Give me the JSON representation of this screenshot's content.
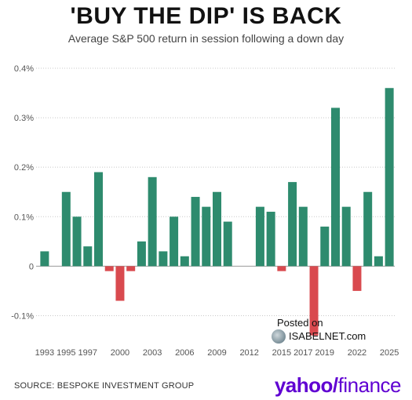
{
  "title": "'BUY THE DIP' IS BACK",
  "subtitle": "Average S&P 500 return in session following a down day",
  "source": "SOURCE: BESPOKE INVESTMENT GROUP",
  "logo": {
    "brand": "yahoo",
    "slash": "/",
    "product": "finance"
  },
  "watermark": {
    "line1": "Posted on",
    "line2": "ISABELNET.com"
  },
  "colors": {
    "positive": "#2e8b6e",
    "negative": "#d94a4f",
    "grid": "#b0b0b0"
  },
  "chart_data": {
    "type": "bar",
    "categories": [
      "1993",
      "1994",
      "1995",
      "1996",
      "1997",
      "1998",
      "1999",
      "2000",
      "2001",
      "2002",
      "2003",
      "2004",
      "2005",
      "2006",
      "2007",
      "2008",
      "2009",
      "2010",
      "2011",
      "2012",
      "2013",
      "2014",
      "2015",
      "2016",
      "2017",
      "2018",
      "2019",
      "2020",
      "2021",
      "2022",
      "2023",
      "2024",
      "2025"
    ],
    "values": [
      0.03,
      0,
      0.15,
      0.1,
      0.04,
      0.19,
      -0.01,
      -0.07,
      -0.01,
      0.05,
      0.18,
      0.03,
      0.1,
      0.02,
      0.14,
      0.12,
      0.15,
      0.09,
      0,
      0,
      0.12,
      0.11,
      -0.01,
      0.17,
      0.12,
      -0.14,
      0.08,
      0.32,
      0.12,
      -0.05,
      0.15,
      0.02,
      0.36
    ],
    "ylim": [
      -0.15,
      0.4
    ],
    "yticks": [
      0.4,
      0.3,
      0.2,
      0.1,
      0,
      -0.1
    ],
    "ytick_labels": [
      "0.4%",
      "0.3%",
      "0.2%",
      "0.1%",
      "0",
      "-0.1%"
    ],
    "xtick_labels": [
      "1993",
      "1995",
      "1997",
      "2000",
      "2003",
      "2006",
      "2009",
      "2012",
      "2015",
      "2017",
      "2019",
      "2022",
      "2025"
    ],
    "xlabel": "",
    "ylabel": "",
    "grid": true
  }
}
